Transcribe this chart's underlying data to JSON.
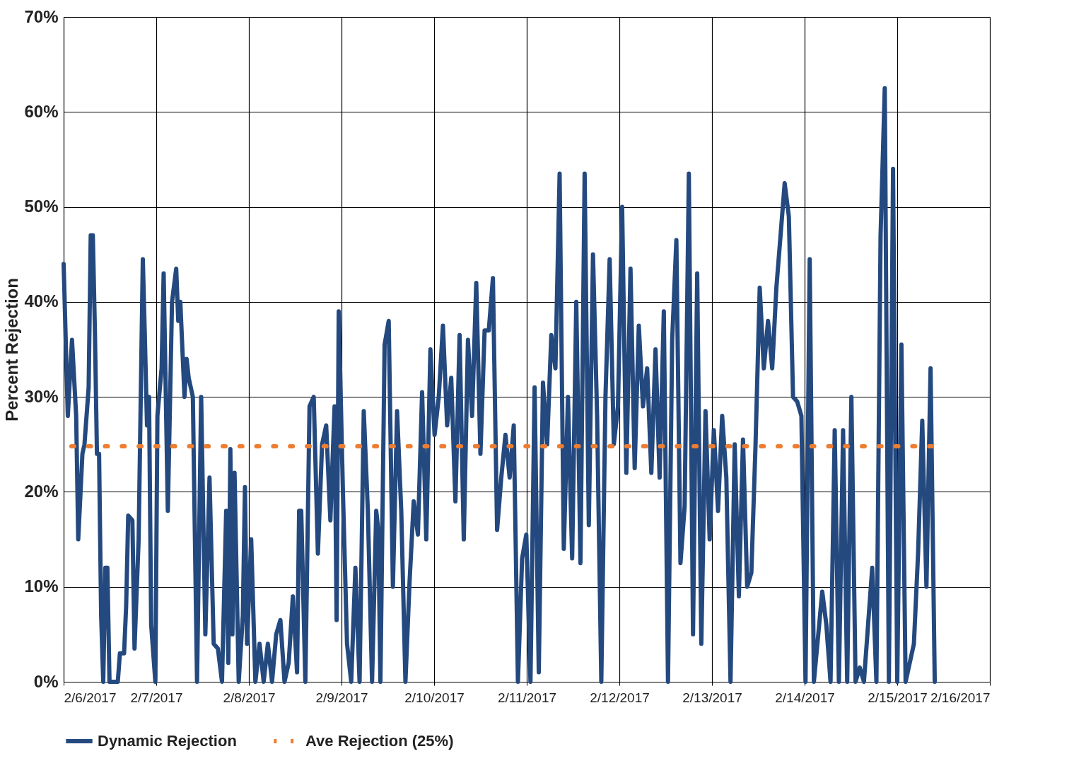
{
  "chart_data": {
    "type": "line",
    "ylabel": "Percent Rejection",
    "xlim": [
      "2017-02-06",
      "2017-02-16"
    ],
    "ylim": [
      0,
      70
    ],
    "xticks": [
      {
        "value": "2017-02-06",
        "label": "2/6/2017"
      },
      {
        "value": "2017-02-07",
        "label": "2/7/2017"
      },
      {
        "value": "2017-02-08",
        "label": "2/8/2017"
      },
      {
        "value": "2017-02-09",
        "label": "2/9/2017"
      },
      {
        "value": "2017-02-10",
        "label": "2/10/2017"
      },
      {
        "value": "2017-02-11",
        "label": "2/11/2017"
      },
      {
        "value": "2017-02-12",
        "label": "2/12/2017"
      },
      {
        "value": "2017-02-13",
        "label": "2/13/2017"
      },
      {
        "value": "2017-02-14",
        "label": "2/14/2017"
      },
      {
        "value": "2017-02-15",
        "label": "2/15/2017"
      },
      {
        "value": "2017-02-16",
        "label": "2/16/2017"
      }
    ],
    "yticks": [
      {
        "value": 0,
        "label": "0%"
      },
      {
        "value": 10,
        "label": "10%"
      },
      {
        "value": 20,
        "label": "20%"
      },
      {
        "value": 30,
        "label": "30%"
      },
      {
        "value": 40,
        "label": "40%"
      },
      {
        "value": 50,
        "label": "50%"
      },
      {
        "value": 60,
        "label": "60%"
      },
      {
        "value": 70,
        "label": "70%"
      }
    ],
    "grid": true,
    "legend": "bottom",
    "marker": "none",
    "series": [
      {
        "name": "Dynamic Rejection",
        "color": "#24497f",
        "line_style": "solid",
        "x": [
          "2017-02-06T00:00",
          "2017-02-06T01:05",
          "2017-02-06T02:10",
          "2017-02-06T03:15",
          "2017-02-06T03:47",
          "2017-02-06T04:52",
          "2017-02-06T05:24",
          "2017-02-06T06:29",
          "2017-02-06T07:01",
          "2017-02-06T07:34",
          "2017-02-06T08:06",
          "2017-02-06T08:38",
          "2017-02-06T09:11",
          "2017-02-06T09:43",
          "2017-02-06T10:16",
          "2017-02-06T10:48",
          "2017-02-06T11:20",
          "2017-02-06T11:53",
          "2017-02-06T14:02",
          "2017-02-06T14:35",
          "2017-02-06T15:40",
          "2017-02-06T16:12",
          "2017-02-06T16:44",
          "2017-02-06T17:49",
          "2017-02-06T18:22",
          "2017-02-06T19:26",
          "2017-02-06T20:31",
          "2017-02-06T21:04",
          "2017-02-06T21:36",
          "2017-02-06T22:08",
          "2017-02-06T22:41",
          "2017-02-06T23:46",
          "2017-02-07T00:18",
          "2017-02-07T01:23",
          "2017-02-07T01:55",
          "2017-02-07T03:00",
          "2017-02-07T04:05",
          "2017-02-07T05:10",
          "2017-02-07T05:42",
          "2017-02-07T06:14",
          "2017-02-07T07:19",
          "2017-02-07T07:52",
          "2017-02-07T08:24",
          "2017-02-07T09:29",
          "2017-02-07T10:34",
          "2017-02-07T11:38",
          "2017-02-07T12:43",
          "2017-02-07T13:48",
          "2017-02-07T14:53",
          "2017-02-07T15:58",
          "2017-02-07T17:02",
          "2017-02-07T18:07",
          "2017-02-07T18:40",
          "2017-02-07T19:12",
          "2017-02-07T19:44",
          "2017-02-07T20:17",
          "2017-02-07T21:22",
          "2017-02-07T22:26",
          "2017-02-07T22:59",
          "2017-02-07T23:31",
          "2017-02-08T00:36",
          "2017-02-08T01:41",
          "2017-02-08T02:46",
          "2017-02-08T03:50",
          "2017-02-08T04:55",
          "2017-02-08T06:00",
          "2017-02-08T07:05",
          "2017-02-08T08:10",
          "2017-02-08T09:14",
          "2017-02-08T10:19",
          "2017-02-08T11:24",
          "2017-02-08T12:29",
          "2017-02-08T13:01",
          "2017-02-08T13:34",
          "2017-02-08T14:38",
          "2017-02-08T15:43",
          "2017-02-08T16:48",
          "2017-02-08T17:53",
          "2017-02-08T18:58",
          "2017-02-08T20:02",
          "2017-02-08T21:07",
          "2017-02-08T22:12",
          "2017-02-08T22:44",
          "2017-02-08T23:17",
          "2017-02-09T00:22",
          "2017-02-09T01:26",
          "2017-02-09T02:31",
          "2017-02-09T03:36",
          "2017-02-09T04:41",
          "2017-02-09T05:46",
          "2017-02-09T06:50",
          "2017-02-09T07:55",
          "2017-02-09T09:00",
          "2017-02-09T09:32",
          "2017-02-09T10:05",
          "2017-02-09T11:10",
          "2017-02-09T12:14",
          "2017-02-09T13:19",
          "2017-02-09T14:24",
          "2017-02-09T15:29",
          "2017-02-09T16:34",
          "2017-02-09T17:38",
          "2017-02-09T18:43",
          "2017-02-09T19:48",
          "2017-02-09T20:53",
          "2017-02-09T21:58",
          "2017-02-09T23:02",
          "2017-02-10T00:07",
          "2017-02-10T01:12",
          "2017-02-10T02:17",
          "2017-02-10T03:22",
          "2017-02-10T04:26",
          "2017-02-10T05:31",
          "2017-02-10T06:36",
          "2017-02-10T07:41",
          "2017-02-10T08:46",
          "2017-02-10T09:50",
          "2017-02-10T10:55",
          "2017-02-10T12:00",
          "2017-02-10T13:05",
          "2017-02-10T14:10",
          "2017-02-10T15:14",
          "2017-02-10T16:19",
          "2017-02-10T17:24",
          "2017-02-10T18:29",
          "2017-02-10T19:34",
          "2017-02-10T20:38",
          "2017-02-10T21:43",
          "2017-02-10T22:48",
          "2017-02-10T23:53",
          "2017-02-11T00:58",
          "2017-02-11T02:02",
          "2017-02-11T03:07",
          "2017-02-11T04:12",
          "2017-02-11T05:17",
          "2017-02-11T06:22",
          "2017-02-11T07:26",
          "2017-02-11T08:31",
          "2017-02-11T09:36",
          "2017-02-11T10:41",
          "2017-02-11T11:46",
          "2017-02-11T12:50",
          "2017-02-11T13:55",
          "2017-02-11T15:00",
          "2017-02-11T16:05",
          "2017-02-11T17:10",
          "2017-02-11T18:14",
          "2017-02-11T19:19",
          "2017-02-11T20:24",
          "2017-02-11T21:29",
          "2017-02-11T22:34",
          "2017-02-11T23:38",
          "2017-02-12T00:43",
          "2017-02-12T01:48",
          "2017-02-12T02:53",
          "2017-02-12T03:58",
          "2017-02-12T05:02",
          "2017-02-12T06:07",
          "2017-02-12T07:12",
          "2017-02-12T08:17",
          "2017-02-12T09:22",
          "2017-02-12T10:26",
          "2017-02-12T11:31",
          "2017-02-12T12:36",
          "2017-02-12T13:41",
          "2017-02-12T14:46",
          "2017-02-12T15:50",
          "2017-02-12T16:55",
          "2017-02-12T18:00",
          "2017-02-12T19:05",
          "2017-02-12T20:10",
          "2017-02-12T21:14",
          "2017-02-12T22:19",
          "2017-02-12T23:24",
          "2017-02-13T00:29",
          "2017-02-13T01:34",
          "2017-02-13T02:38",
          "2017-02-13T03:43",
          "2017-02-13T04:48",
          "2017-02-13T05:53",
          "2017-02-13T06:58",
          "2017-02-13T08:02",
          "2017-02-13T09:07",
          "2017-02-13T10:12",
          "2017-02-13T11:17",
          "2017-02-13T12:22",
          "2017-02-13T13:26",
          "2017-02-13T14:31",
          "2017-02-13T15:36",
          "2017-02-13T16:41",
          "2017-02-13T17:46",
          "2017-02-13T18:50",
          "2017-02-13T19:55",
          "2017-02-13T21:00",
          "2017-02-13T22:05",
          "2017-02-13T23:10",
          "2017-02-14T00:14",
          "2017-02-14T01:19",
          "2017-02-14T02:24",
          "2017-02-14T04:34",
          "2017-02-14T05:38",
          "2017-02-14T06:43",
          "2017-02-14T07:48",
          "2017-02-14T08:53",
          "2017-02-14T09:58",
          "2017-02-14T11:02",
          "2017-02-14T12:07",
          "2017-02-14T13:12",
          "2017-02-14T14:17",
          "2017-02-14T15:22",
          "2017-02-14T17:31",
          "2017-02-14T18:36",
          "2017-02-14T19:41",
          "2017-02-14T20:46",
          "2017-02-14T21:50",
          "2017-02-14T22:55",
          "2017-02-15T00:00",
          "2017-02-15T01:05",
          "2017-02-15T02:10",
          "2017-02-15T04:19",
          "2017-02-15T05:24",
          "2017-02-15T06:29",
          "2017-02-15T07:34",
          "2017-02-15T08:38",
          "2017-02-15T09:43"
        ],
        "values": [
          44,
          28,
          36,
          28,
          15,
          24,
          25,
          31,
          47,
          47,
          37,
          24,
          24,
          7,
          0,
          12,
          12,
          0,
          0,
          3,
          3,
          8,
          17.5,
          17,
          3.5,
          15,
          44.5,
          36,
          27,
          30,
          6,
          0,
          28,
          33,
          43,
          18,
          40,
          43.5,
          38,
          40,
          30,
          34,
          32,
          30,
          0,
          30,
          5,
          21.5,
          4,
          3.5,
          0,
          18,
          2,
          24.5,
          5,
          22,
          0,
          7,
          20.5,
          4,
          15,
          0,
          4,
          0,
          4,
          0,
          5,
          6.5,
          0,
          2,
          9,
          1,
          18,
          18,
          0,
          29,
          30,
          13.5,
          25,
          27,
          17,
          29,
          6.5,
          39,
          20,
          4,
          0,
          12,
          0,
          28.5,
          18,
          0,
          18,
          16,
          0,
          35.5,
          38,
          10,
          28.5,
          18,
          0,
          10.5,
          19,
          15.5,
          30.5,
          15,
          35,
          26,
          30,
          37.5,
          27,
          32,
          19,
          36.5,
          15,
          36,
          28,
          42,
          24,
          37,
          37,
          42.5,
          16,
          21.5,
          26,
          21.5,
          27,
          0,
          13,
          15.5,
          0,
          31,
          1,
          31.5,
          25,
          36.5,
          33,
          53.5,
          14,
          30,
          13,
          40,
          12.5,
          53.5,
          16.5,
          45,
          28,
          0,
          30,
          44.5,
          25,
          29,
          50,
          22,
          43.5,
          22.5,
          37.5,
          29,
          33,
          22,
          35,
          21.5,
          39,
          0,
          36,
          46.5,
          12.5,
          18.5,
          53.5,
          5,
          43,
          4,
          28.5,
          15,
          26.5,
          18,
          28,
          21.5,
          0,
          25,
          9,
          25.5,
          10,
          11.5,
          25,
          41.5,
          33,
          38,
          33,
          41.5,
          47,
          52.5,
          49,
          30,
          29.5,
          28,
          0,
          44.5,
          0,
          9.5,
          6,
          0,
          26.5,
          0,
          26.5,
          0,
          30,
          0,
          1.5,
          0,
          12,
          0,
          47,
          62.5,
          0,
          54,
          0,
          35.5,
          0,
          4,
          13.5,
          27.5,
          10,
          33,
          0
        ]
      },
      {
        "name": "Ave Rejection (25%)",
        "color": "#ed7d31",
        "line_style": "dotted",
        "x": [
          "2017-02-06T02:00",
          "2017-02-15T09:00"
        ],
        "values": [
          24.8,
          24.8
        ]
      }
    ]
  }
}
